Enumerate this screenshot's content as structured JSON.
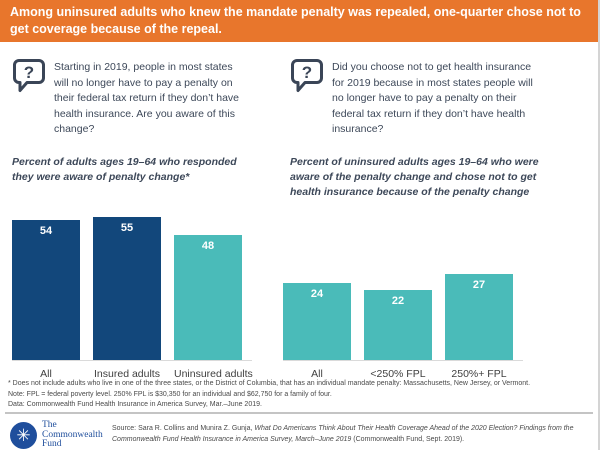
{
  "header": {
    "title": "Among uninsured adults who knew the mandate penalty was repealed, one-quarter chose not to get coverage because of the repeal.",
    "bg_color": "#E8762C"
  },
  "colors": {
    "navy_bar": "#12477B",
    "teal_bar": "#4ABBB9",
    "header_orange": "#E8762C",
    "text_slate": "#3D4859",
    "logo_blue": "#1F4E9C"
  },
  "panels": {
    "left": {
      "icon": "question-speech-bubble-icon",
      "question": "Starting in 2019, people in most states will no longer have to pay a penalty on their federal tax return if they don’t have health insurance. Are you aware of this change?",
      "subtitle": "Percent of adults ages 19–64 who responded they were aware of penalty change*"
    },
    "right": {
      "icon": "question-speech-bubble-icon",
      "question": "Did you choose not to get health insurance for 2019 because in most states people will no longer have to pay a penalty on their federal tax return if they don’t have health insurance?",
      "subtitle": "Percent of uninsured adults ages 19–64 who were aware of the penalty change and chose not to get health insurance because of the penalty change"
    }
  },
  "chart_data": [
    {
      "type": "bar",
      "title": "Percent of adults ages 19–64 who responded they were aware of penalty change*",
      "categories": [
        "All",
        "Insured adults",
        "Uninsured adults"
      ],
      "values": [
        54,
        55,
        48
      ],
      "bar_colors": [
        "#12477B",
        "#12477B",
        "#4ABBB9"
      ],
      "value_labels": "inside-top, white",
      "ylim": [
        0,
        60
      ],
      "grid": false,
      "legend": false
    },
    {
      "type": "bar",
      "title": "Percent of uninsured adults ages 19–64 who were aware of the penalty change and chose not to get health insurance because of the penalty change",
      "categories": [
        "All",
        "<250% FPL",
        "250%+ FPL"
      ],
      "values": [
        24,
        22,
        27
      ],
      "bar_colors": [
        "#4ABBB9",
        "#4ABBB9",
        "#4ABBB9"
      ],
      "value_labels": "inside-top, white",
      "ylim": [
        0,
        30
      ],
      "grid": false,
      "legend": false
    }
  ],
  "footnotes": [
    "* Does not include adults who live in one of the three states, or the District of Columbia, that has an individual mandate penalty: Massachusetts, New Jersey, or Vermont.",
    "Note: FPL = federal poverty level. 250% FPL is $30,350 for an individual and $62,750 for a family of four.",
    "Data: Commonwealth Fund Health Insurance in America Survey, Mar.–June 2019."
  ],
  "footer": {
    "logo": {
      "icon": "commonwealth-fund-logo",
      "lines": [
        "The",
        "Commonwealth",
        "Fund"
      ]
    },
    "source_prefix": "Source: Sara R. Collins and Munira Z. Gunja, ",
    "source_title": "What Do Americans Think About Their Health Coverage Ahead of the 2020 Election? Findings from the Commonwealth Fund Health Insurance in America Survey, March–June 2019",
    "source_suffix": " (Commonwealth Fund, Sept. 2019)."
  }
}
